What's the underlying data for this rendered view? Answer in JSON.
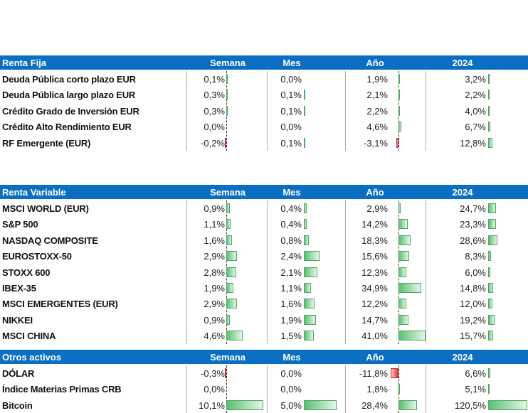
{
  "columns": [
    "Semana",
    "Mes",
    "Año",
    "2024"
  ],
  "colors": {
    "header": "#0a6fc2",
    "positive_bar": "#5cbf72",
    "negative_bar": "#e53935"
  },
  "sections": [
    {
      "title": "Renta Fija",
      "rows": [
        {
          "name": "Deuda Pública corto plazo EUR",
          "values": [
            "0,1%",
            "0,0%",
            "1,9%",
            "3,2%"
          ],
          "nums": [
            0.1,
            0.0,
            1.9,
            3.2
          ]
        },
        {
          "name": "Deuda Pública largo plazo EUR",
          "values": [
            "0,3%",
            "0,1%",
            "2,1%",
            "2,2%"
          ],
          "nums": [
            0.3,
            0.1,
            2.1,
            2.2
          ]
        },
        {
          "name": "Crédito Grado de Inversión EUR",
          "values": [
            "0,3%",
            "0,1%",
            "2,2%",
            "4,0%"
          ],
          "nums": [
            0.3,
            0.1,
            2.2,
            4.0
          ]
        },
        {
          "name": "Crédito Alto Rendimiento EUR",
          "values": [
            "0,0%",
            "0,0%",
            "4,6%",
            "6,7%"
          ],
          "nums": [
            0.0,
            0.0,
            4.6,
            6.7
          ]
        },
        {
          "name": "RF Emergente (EUR)",
          "values": [
            "-0,2%",
            "0,1%",
            "-3,1%",
            "12,8%"
          ],
          "nums": [
            -0.2,
            0.1,
            -3.1,
            12.8
          ]
        }
      ]
    },
    {
      "title": "Renta Variable",
      "rows": [
        {
          "name": "MSCI WORLD (EUR)",
          "values": [
            "0,9%",
            "0,4%",
            "2,9%",
            "24,7%"
          ],
          "nums": [
            0.9,
            0.4,
            2.9,
            24.7
          ]
        },
        {
          "name": "S&P 500",
          "values": [
            "1,1%",
            "0,4%",
            "14,2%",
            "23,3%"
          ],
          "nums": [
            1.1,
            0.4,
            14.2,
            23.3
          ]
        },
        {
          "name": "NASDAQ COMPOSITE",
          "values": [
            "1,6%",
            "0,8%",
            "18,3%",
            "28,6%"
          ],
          "nums": [
            1.6,
            0.8,
            18.3,
            28.6
          ]
        },
        {
          "name": "EUROSTOXX-50",
          "values": [
            "2,9%",
            "2,4%",
            "15,6%",
            "8,3%"
          ],
          "nums": [
            2.9,
            2.4,
            15.6,
            8.3
          ]
        },
        {
          "name": "STOXX 600",
          "values": [
            "2,8%",
            "2,1%",
            "12,3%",
            "6,0%"
          ],
          "nums": [
            2.8,
            2.1,
            12.3,
            6.0
          ]
        },
        {
          "name": "IBEX-35",
          "values": [
            "1,9%",
            "1,1%",
            "34,9%",
            "14,8%"
          ],
          "nums": [
            1.9,
            1.1,
            34.9,
            14.8
          ]
        },
        {
          "name": "MSCI EMERGENTES (EUR)",
          "values": [
            "2,9%",
            "1,6%",
            "12,2%",
            "12,0%"
          ],
          "nums": [
            2.9,
            1.6,
            12.2,
            12.0
          ]
        },
        {
          "name": "NIKKEI",
          "values": [
            "0,9%",
            "1,9%",
            "14,7%",
            "19,2%"
          ],
          "nums": [
            0.9,
            1.9,
            14.7,
            19.2
          ]
        },
        {
          "name": "MSCI CHINA",
          "values": [
            "4,6%",
            "1,5%",
            "41,0%",
            "15,7%"
          ],
          "nums": [
            4.6,
            1.5,
            41.0,
            15.7
          ]
        }
      ]
    },
    {
      "title": "Otros activos",
      "rows": [
        {
          "name": "DÓLAR",
          "values": [
            "-0,3%",
            "0,0%",
            "-11,8%",
            "6,6%"
          ],
          "nums": [
            -0.3,
            0.0,
            -11.8,
            6.6
          ]
        },
        {
          "name": "Índice Materias Primas CRB",
          "values": [
            "0,0%",
            "0,0%",
            "1,8%",
            "5,1%"
          ],
          "nums": [
            0.0,
            0.0,
            1.8,
            5.1
          ]
        },
        {
          "name": "Bitcoin",
          "values": [
            "10,1%",
            "5,0%",
            "28,4%",
            "120,5%"
          ],
          "nums": [
            10.1,
            5.0,
            28.4,
            120.5
          ]
        }
      ]
    }
  ]
}
